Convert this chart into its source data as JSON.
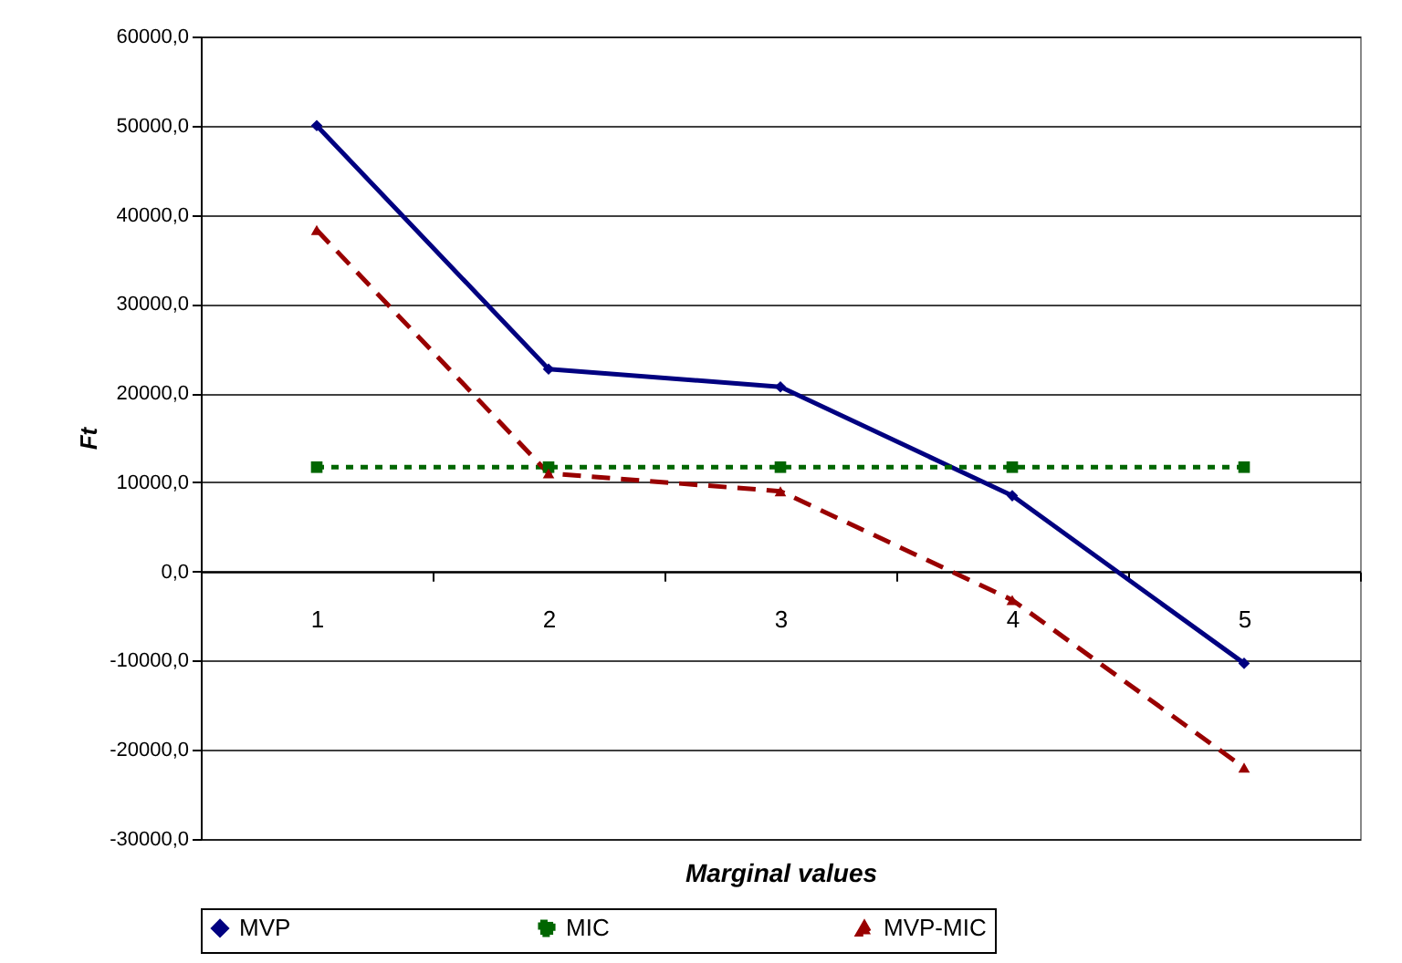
{
  "chart_data": {
    "type": "line",
    "xlabel": "Marginal values",
    "ylabel": "Ft",
    "categories": [
      "1",
      "2",
      "3",
      "4",
      "5"
    ],
    "series": [
      {
        "name": "MVP",
        "color": "#000080",
        "values": [
          50000,
          22700,
          20700,
          8500,
          -10300
        ],
        "marker": "diamond",
        "line_style": "solid"
      },
      {
        "name": "MIC",
        "color": "#006600",
        "values": [
          11700,
          11700,
          11700,
          11700,
          11700
        ],
        "marker": "square",
        "line_style": "dotted"
      },
      {
        "name": "MVP-MIC",
        "color": "#990000",
        "values": [
          38300,
          11000,
          9000,
          -3200,
          -22000
        ],
        "marker": "triangle",
        "line_style": "dashed"
      }
    ],
    "ylim": [
      -30000,
      60000
    ],
    "yticks": [
      {
        "value": -30000,
        "label": "-30000,0"
      },
      {
        "value": -20000,
        "label": "-20000,0"
      },
      {
        "value": -10000,
        "label": "-10000,0"
      },
      {
        "value": 0,
        "label": "0,0"
      },
      {
        "value": 10000,
        "label": "10000,0"
      },
      {
        "value": 20000,
        "label": "20000,0"
      },
      {
        "value": 30000,
        "label": "30000,0"
      },
      {
        "value": 40000,
        "label": "40000,0"
      },
      {
        "value": 50000,
        "label": "50000,0"
      },
      {
        "value": 60000,
        "label": "60000,0"
      }
    ],
    "grid": "y",
    "legend": "bottom"
  }
}
